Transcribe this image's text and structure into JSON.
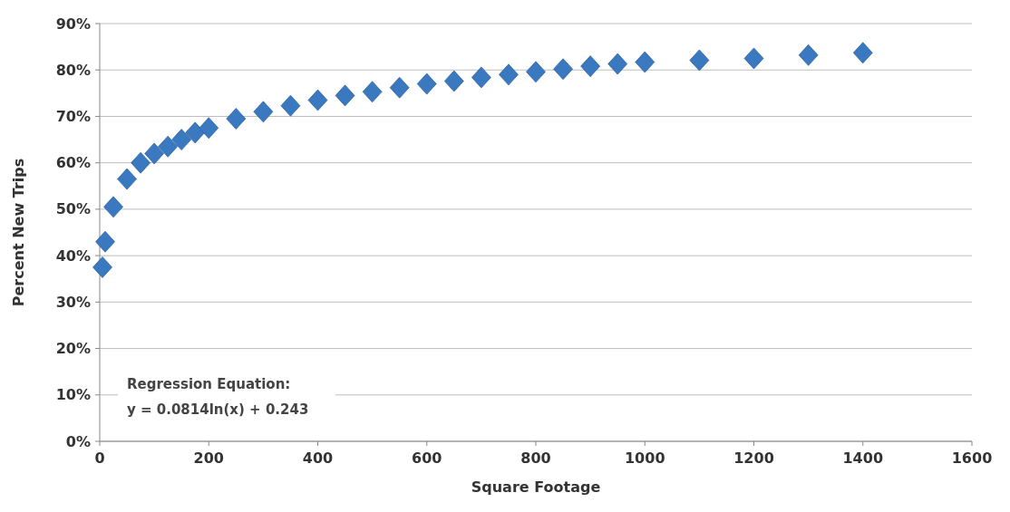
{
  "chart_data": {
    "type": "scatter",
    "xlabel": "Square Footage",
    "ylabel": "Percent New Trips",
    "x": [
      5,
      10,
      25,
      50,
      75,
      100,
      125,
      150,
      175,
      200,
      250,
      300,
      350,
      400,
      450,
      500,
      550,
      600,
      650,
      700,
      750,
      800,
      850,
      900,
      950,
      1000,
      1100,
      1200,
      1300,
      1400
    ],
    "series": [
      {
        "color": "#3a78c0",
        "values": [
          37.5,
          43,
          50.5,
          56.5,
          60,
          62,
          63.5,
          65,
          66.5,
          67.5,
          69.5,
          71,
          72.3,
          73.5,
          74.5,
          75.3,
          76.2,
          77,
          77.6,
          78.4,
          79,
          79.6,
          80.2,
          80.8,
          81.3,
          81.7,
          82.1,
          82.5,
          83.2,
          83.7
        ]
      }
    ],
    "xlim": [
      0,
      1600
    ],
    "xticks": [
      0,
      200,
      400,
      600,
      800,
      1000,
      1200,
      1400,
      1600
    ],
    "ylim": [
      0,
      90
    ],
    "yticks": [
      {
        "value": 0,
        "label": "0%"
      },
      {
        "value": 10,
        "label": "10%"
      },
      {
        "value": 20,
        "label": "20%"
      },
      {
        "value": 30,
        "label": "30%"
      },
      {
        "value": 40,
        "label": "40%"
      },
      {
        "value": 50,
        "label": "50%"
      },
      {
        "value": 60,
        "label": "60%"
      },
      {
        "value": 70,
        "label": "70%"
      },
      {
        "value": 80,
        "label": "80%"
      },
      {
        "value": 90,
        "label": "90%"
      }
    ],
    "grid": "y",
    "marker": "diamond",
    "annotations": [
      "Regression Equation:",
      "y = 0.0814ln(x) + 0.243"
    ]
  }
}
